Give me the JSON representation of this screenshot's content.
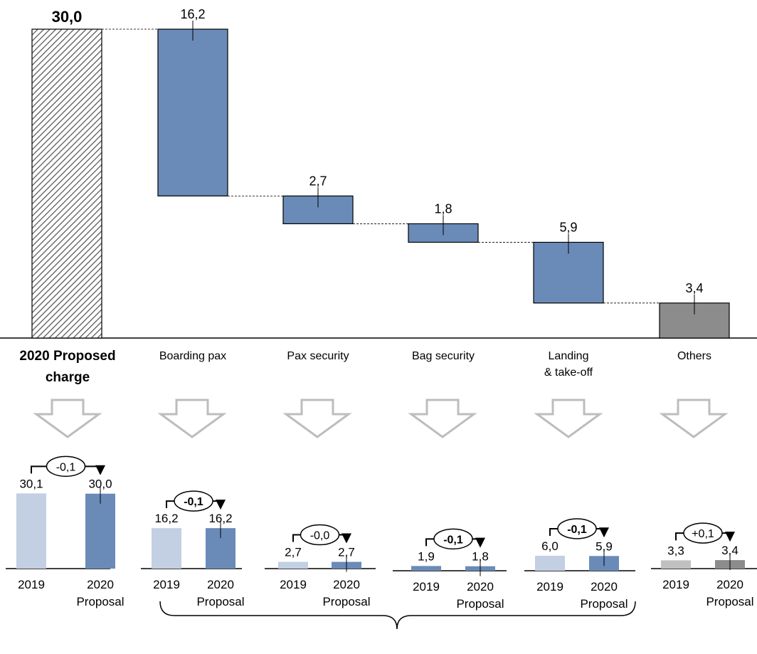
{
  "chart_data": {
    "type": "bar",
    "main": {
      "type": "waterfall",
      "total": {
        "label_line1": "2020 Proposed",
        "label_line2": "charge",
        "value": 30.0,
        "value_label": "30,0"
      },
      "components": [
        {
          "label_line1": "Boarding pax",
          "label_line2": "",
          "value": 16.2,
          "value_label": "16,2",
          "color": "#6a8bb8"
        },
        {
          "label_line1": "Pax security",
          "label_line2": "",
          "value": 2.7,
          "value_label": "2,7",
          "color": "#6a8bb8"
        },
        {
          "label_line1": "Bag security",
          "label_line2": "",
          "value": 1.8,
          "value_label": "1,8",
          "color": "#6a8bb8"
        },
        {
          "label_line1": "Landing",
          "label_line2": "& take-off",
          "value": 5.9,
          "value_label": "5,9",
          "color": "#6a8bb8"
        },
        {
          "label_line1": "Others",
          "label_line2": "",
          "value": 3.4,
          "value_label": "3,4",
          "color": "#8c8c8c"
        }
      ]
    },
    "comparisons": [
      {
        "categories": [
          "2019",
          "2020"
        ],
        "sublabel": "Proposal",
        "values": [
          30.1,
          30.0
        ],
        "labels": [
          "30,1",
          "30,0"
        ],
        "delta": "-0,1",
        "delta_bold": false,
        "colors": [
          "#c3cfe2",
          "#6a8bb8"
        ]
      },
      {
        "categories": [
          "2019",
          "2020"
        ],
        "sublabel": "Proposal",
        "values": [
          16.2,
          16.2
        ],
        "labels": [
          "16,2",
          "16,2"
        ],
        "delta": "-0,1",
        "delta_bold": true,
        "colors": [
          "#c3cfe2",
          "#6a8bb8"
        ]
      },
      {
        "categories": [
          "2019",
          "2020"
        ],
        "sublabel": "Proposal",
        "values": [
          2.7,
          2.7
        ],
        "labels": [
          "2,7",
          "2,7"
        ],
        "delta": "-0,0",
        "delta_bold": false,
        "colors": [
          "#c3cfe2",
          "#6a8bb8"
        ]
      },
      {
        "categories": [
          "2019",
          "2020"
        ],
        "sublabel": "Proposal",
        "values": [
          1.9,
          1.8
        ],
        "labels": [
          "1,9",
          "1,8"
        ],
        "delta": "-0,1",
        "delta_bold": true,
        "colors": [
          "#6a8bb8",
          "#6a8bb8"
        ]
      },
      {
        "categories": [
          "2019",
          "2020"
        ],
        "sublabel": "Proposal",
        "values": [
          6.0,
          5.9
        ],
        "labels": [
          "6,0",
          "5,9"
        ],
        "delta": "-0,1",
        "delta_bold": true,
        "colors": [
          "#c3cfe2",
          "#6a8bb8"
        ]
      },
      {
        "categories": [
          "2019",
          "2020"
        ],
        "sublabel": "Proposal",
        "values": [
          3.3,
          3.4
        ],
        "labels": [
          "3,3",
          "3,4"
        ],
        "delta": "+0,1",
        "delta_bold": false,
        "colors": [
          "#c0c0c0",
          "#8c8c8c"
        ]
      }
    ]
  }
}
